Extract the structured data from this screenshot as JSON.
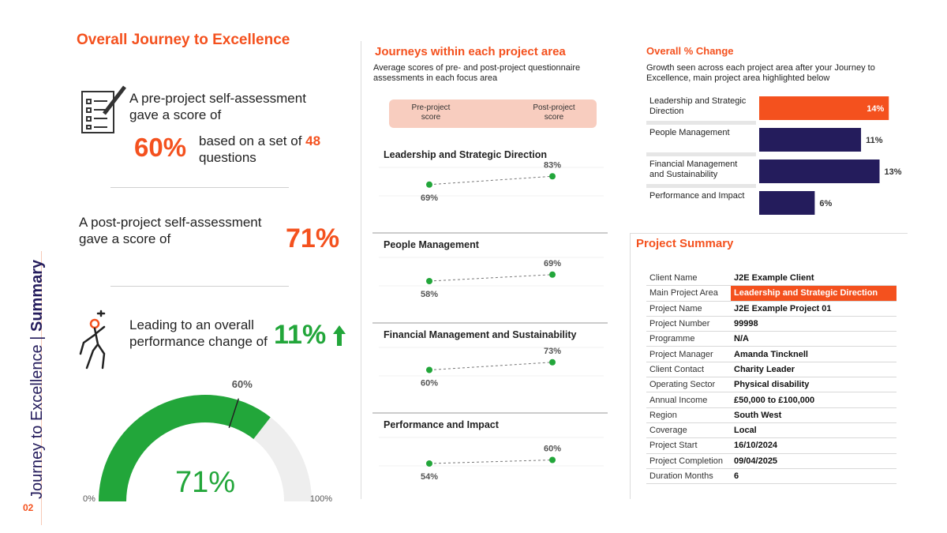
{
  "sidebar": {
    "title": "Journey to Excellence",
    "section": "Summary",
    "page": "02"
  },
  "overview": {
    "title": "Overall Journey to Excellence",
    "pre_text": "A pre-project self-assessment gave a score of",
    "pre_score": "60%",
    "questions_text": "based on a set of",
    "questions_count": "48",
    "questions_unit": "questions",
    "post_text": "A post-project self-assessment gave a score of",
    "post_score": "71%",
    "change_text": "Leading to an overall performance change of",
    "change": "11%"
  },
  "chart_data": [
    {
      "type": "gauge",
      "values": [
        71
      ],
      "value_labels": [
        "71%"
      ],
      "color": "#22a63a",
      "track_color": "#eeeeee",
      "marker": {
        "value": 60,
        "label": "60%"
      },
      "ylim": [
        0,
        100
      ],
      "yticks": [
        {
          "value": 0,
          "label": "0%"
        },
        {
          "value": 100,
          "label": "100%"
        }
      ]
    },
    {
      "type": "slope",
      "title": "Journeys within each project area",
      "subtitle": "Average scores of pre- and post-project questionnaire assessments in each focus area",
      "categories": [
        "Leadership and Strategic Direction",
        "People Management",
        "Financial Management and Sustainability",
        "Performance and Impact"
      ],
      "series": [
        {
          "name": "Pre-project score",
          "color": "#22a63a",
          "values": [
            69,
            58,
            60,
            54
          ],
          "value_labels": [
            "69%",
            "58%",
            "60%",
            "54%"
          ]
        },
        {
          "name": "Post-project score",
          "color": "#22a63a",
          "values": [
            83,
            69,
            73,
            60
          ],
          "value_labels": [
            "83%",
            "69%",
            "73%",
            "60%"
          ]
        }
      ],
      "ylim": [
        50,
        90
      ]
    },
    {
      "type": "bar",
      "orientation": "horizontal",
      "title": "Overall % Change",
      "subtitle": "Growth seen across each project area after your Journey to Excellence, main project area highlighted below",
      "categories": [
        "Leadership and Strategic Direction",
        "People Management",
        "Financial Management and Sustainability",
        "Performance and Impact"
      ],
      "values": [
        14,
        11,
        13,
        6
      ],
      "value_labels": [
        "14%",
        "11%",
        "13%",
        "6%"
      ],
      "color": "#241c5c",
      "colors": [
        "#f4511e",
        "#241c5c",
        "#241c5c",
        "#241c5c"
      ],
      "xlim": [
        0,
        15
      ]
    }
  ],
  "project_summary": {
    "title": "Project Summary",
    "rows": [
      [
        "Client Name",
        "J2E Example Client"
      ],
      [
        "Main Project Area",
        "Leadership and Strategic Direction"
      ],
      [
        "Project Name",
        "J2E Example Project 01"
      ],
      [
        "Project Number",
        "99998"
      ],
      [
        "Programme",
        "N/A"
      ],
      [
        "Project Manager",
        "Amanda Tincknell"
      ],
      [
        "Client Contact",
        "Charity Leader"
      ],
      [
        "Operating Sector",
        "Physical disability"
      ],
      [
        "Annual Income",
        "£50,000 to £100,000"
      ],
      [
        "Region",
        "South West"
      ],
      [
        "Coverage",
        "Local"
      ],
      [
        "Project Start",
        "16/10/2024"
      ],
      [
        "Project Completion",
        "09/04/2025"
      ],
      [
        "Duration Months",
        "6"
      ]
    ]
  }
}
